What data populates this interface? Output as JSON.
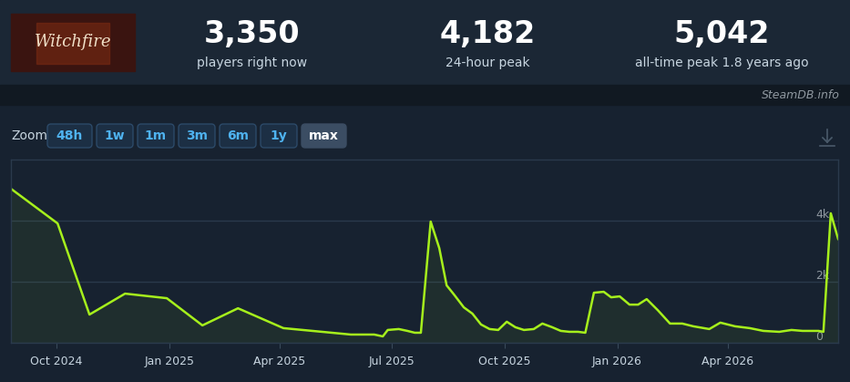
{
  "header": {
    "logo_text": "Witchfire",
    "stats": [
      {
        "value": "3,350",
        "label": "players right now"
      },
      {
        "value": "4,182",
        "label": "24-hour peak"
      },
      {
        "value": "5,042",
        "label": "all-time peak 1.8 years ago"
      }
    ]
  },
  "source": "SteamDB.info",
  "zoom": {
    "label": "Zoom",
    "buttons": [
      "48h",
      "1w",
      "1m",
      "3m",
      "6m",
      "1y",
      "max"
    ],
    "active": "max"
  },
  "chart_data": {
    "type": "line",
    "color": "#a6f01c",
    "grid": true,
    "x": [
      "2024-08-25",
      "2024-10-02",
      "2024-10-28",
      "2024-11-26",
      "2024-12-30",
      "2025-01-28",
      "2025-02-26",
      "2025-04-04",
      "2025-05-29",
      "2025-06-17",
      "2025-06-24",
      "2025-06-28",
      "2025-07-07",
      "2025-07-14",
      "2025-07-20",
      "2025-07-25",
      "2025-08-02",
      "2025-08-09",
      "2025-08-15",
      "2025-08-21",
      "2025-08-29",
      "2025-09-05",
      "2025-09-12",
      "2025-09-19",
      "2025-09-26",
      "2025-10-03",
      "2025-10-10",
      "2025-10-17",
      "2025-10-25",
      "2025-11-01",
      "2025-11-09",
      "2025-11-16",
      "2025-11-23",
      "2025-11-30",
      "2025-12-06",
      "2025-12-13",
      "2025-12-21",
      "2025-12-27",
      "2026-01-03",
      "2026-01-11",
      "2026-01-18",
      "2026-01-25",
      "2026-02-03",
      "2026-02-13",
      "2026-02-23",
      "2026-03-04",
      "2026-03-17",
      "2026-03-26",
      "2026-04-07",
      "2026-04-19",
      "2026-04-30",
      "2026-05-13",
      "2026-05-23",
      "2026-06-01",
      "2026-06-14",
      "2026-06-18",
      "2026-06-24",
      "2026-06-30"
    ],
    "values": [
      5045,
      3910,
      925,
      1610,
      1460,
      570,
      1130,
      480,
      270,
      270,
      210,
      420,
      450,
      390,
      330,
      330,
      3970,
      3100,
      1880,
      1580,
      1160,
      955,
      600,
      450,
      420,
      690,
      510,
      420,
      450,
      630,
      510,
      390,
      360,
      360,
      330,
      1640,
      1670,
      1490,
      1520,
      1250,
      1250,
      1430,
      1070,
      630,
      630,
      540,
      450,
      660,
      540,
      480,
      390,
      360,
      420,
      390,
      390,
      360,
      4240,
      3400
    ],
    "xlim": [
      "2024-08-25",
      "2026-06-30"
    ],
    "xticks": [
      {
        "value": "2024-10-01",
        "label": "Oct 2024"
      },
      {
        "value": "2025-01-01",
        "label": "Jan 2025"
      },
      {
        "value": "2025-04-01",
        "label": "Apr 2025"
      },
      {
        "value": "2025-07-01",
        "label": "Jul 2025"
      },
      {
        "value": "2025-10-01",
        "label": "Oct 2025"
      },
      {
        "value": "2026-01-01",
        "label": "Jan 2026"
      },
      {
        "value": "2026-04-01",
        "label": "Apr 2026"
      }
    ],
    "ylim": [
      0,
      6000
    ],
    "yticks": [
      0,
      {
        "value": 2000,
        "label": "2k"
      },
      {
        "value": 4000,
        "label": "4k"
      }
    ]
  }
}
